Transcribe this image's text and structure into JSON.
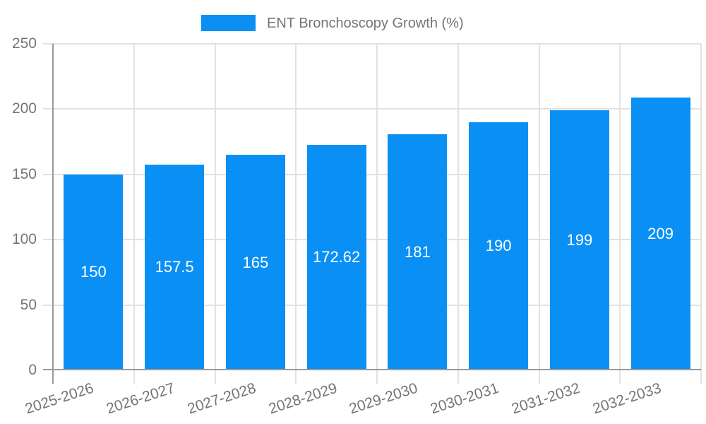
{
  "chart_data": {
    "type": "bar",
    "title": "",
    "legend": {
      "label": "ENT Bronchoscopy Growth (%)",
      "position": "top-center"
    },
    "categories": [
      "2025-2026",
      "2026-2027",
      "2027-2028",
      "2028-2029",
      "2029-2030",
      "2030-2031",
      "2031-2032",
      "2032-2033"
    ],
    "values": [
      150,
      157.5,
      165,
      172.62,
      181,
      190,
      199,
      209
    ],
    "value_labels": [
      "150",
      "157.5",
      "165",
      "172.62",
      "181",
      "190",
      "199",
      "209"
    ],
    "xlabel": "",
    "ylabel": "",
    "ylim": [
      0,
      250
    ],
    "yticks": [
      0,
      50,
      100,
      150,
      200,
      250
    ],
    "grid": "on",
    "colors": {
      "bar": "#0a90f5",
      "annotation_text": "#ffffff",
      "tick_text": "#757575",
      "legend_text": "#757575",
      "axis_line": "#9a9a9a",
      "grid_line": "#e2e2e2",
      "background": "#ffffff"
    }
  }
}
